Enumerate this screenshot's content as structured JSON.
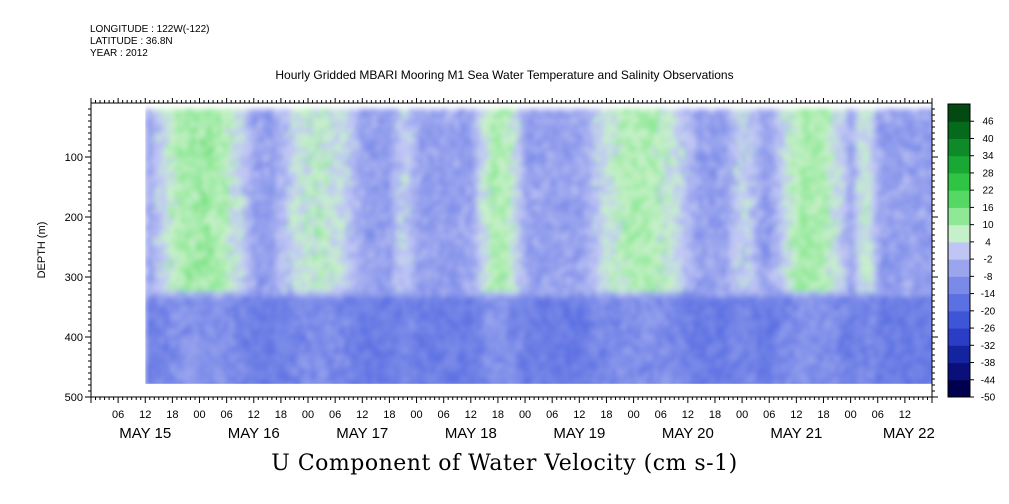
{
  "meta": {
    "longitude": "LONGITUDE : 122W(-122)",
    "latitude": "LATITUDE : 36.8N",
    "year": "YEAR : 2012"
  },
  "chart_data": {
    "type": "heatmap",
    "title": "Hourly Gridded MBARI Mooring M1 Sea Water Temperature and Salinity Observations",
    "colorbar_title": "U Component of Water Velocity (cm s-1)",
    "ylabel": "DEPTH (m)",
    "ylim": [
      500,
      10
    ],
    "y_ticks": [
      100,
      200,
      300,
      400,
      500
    ],
    "y_tick_labels": [
      "100",
      "200",
      "300",
      "400",
      "500"
    ],
    "x_range_hours": [
      0,
      186
    ],
    "x_hour_ticks": [
      0,
      6,
      12,
      18
    ],
    "x_hour_tick_labels": [
      "06",
      "12",
      "18",
      "00"
    ],
    "x_day_labels": [
      {
        "label": "MAY 15",
        "day": 0
      },
      {
        "label": "MAY 16",
        "day": 1
      },
      {
        "label": "MAY 17",
        "day": 2
      },
      {
        "label": "MAY 18",
        "day": 3
      },
      {
        "label": "MAY 19",
        "day": 4
      },
      {
        "label": "MAY 20",
        "day": 5
      },
      {
        "label": "MAY 21",
        "day": 6
      },
      {
        "label": "MAY 22",
        "day": 7
      }
    ],
    "colorbar": {
      "levels": [
        -50,
        -44,
        -38,
        -32,
        -26,
        -20,
        -14,
        -8,
        -2,
        4,
        10,
        16,
        22,
        28,
        34,
        40,
        46
      ],
      "level_labels": [
        "-50",
        "-44",
        "-38",
        "-32",
        "-26",
        "-20",
        "-14",
        "-8",
        "-2",
        "4",
        "10",
        "16",
        "22",
        "28",
        "34",
        "40",
        "46"
      ],
      "colors": [
        "#00004e",
        "#0a0f7a",
        "#1424a0",
        "#2a3dc4",
        "#3f55d8",
        "#5b70e2",
        "#7a8ae8",
        "#9aa5ee",
        "#c0c6f4",
        "#c6f0c8",
        "#8ee896",
        "#56d864",
        "#2fc444",
        "#1aa834",
        "#0e8a28",
        "#056a1c",
        "#024a12"
      ]
    },
    "grid": false,
    "data_description_note": "Depth–time field of U velocity; values read from color: mostly -14 to +22 cm/s with green (positive) bands around hours 12–36, 42–60, 84–96, 108–132, 150–168, 168–174 and blue (negative) deep layers below ~300 m."
  }
}
